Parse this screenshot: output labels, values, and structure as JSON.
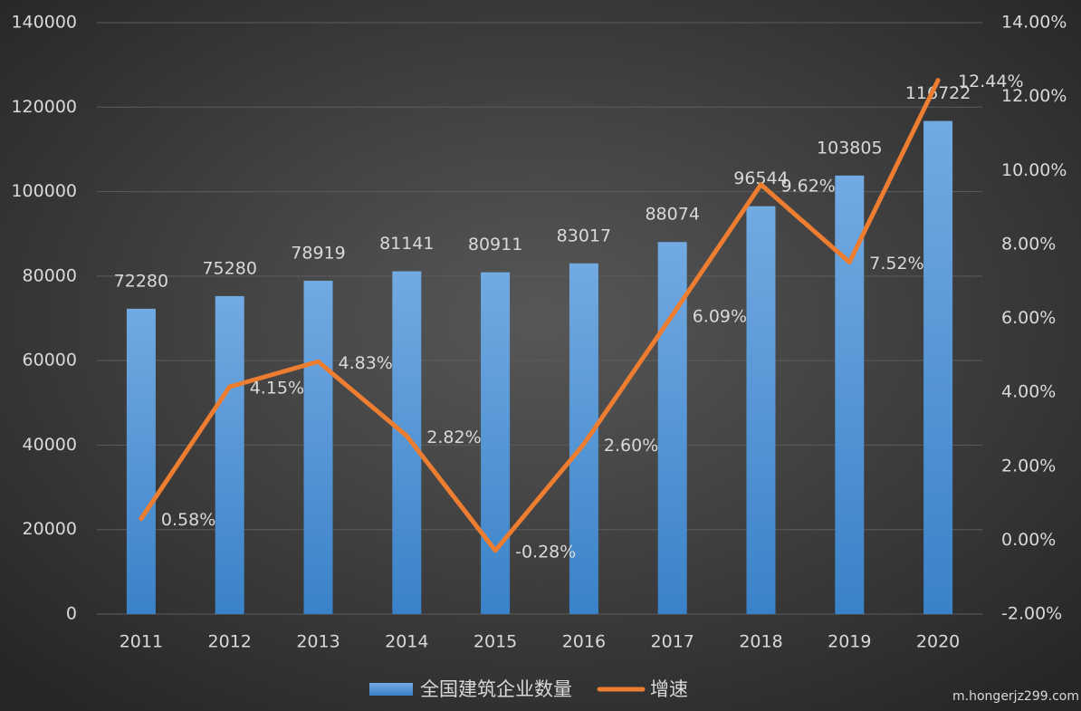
{
  "chart_data": {
    "type": "combo",
    "categories": [
      "2011",
      "2012",
      "2013",
      "2014",
      "2015",
      "2016",
      "2017",
      "2018",
      "2019",
      "2020"
    ],
    "series": [
      {
        "name": "全国建筑企业数量",
        "type": "bar",
        "color": "#4a90d4",
        "axis": "y",
        "values": [
          72280,
          75280,
          78919,
          81141,
          80911,
          83017,
          88074,
          96544,
          103805,
          116722
        ]
      },
      {
        "name": "增速",
        "type": "line",
        "color": "#ed7d31",
        "axis": "y2",
        "values": [
          0.58,
          4.15,
          4.83,
          2.82,
          -0.28,
          2.6,
          6.09,
          9.62,
          7.52,
          12.44
        ],
        "value_labels": [
          "0.58%",
          "4.15%",
          "4.83%",
          "2.82%",
          "-0.28%",
          "2.60%",
          "6.09%",
          "9.62%",
          "7.52%",
          "12.44%"
        ]
      }
    ],
    "ylim": [
      0,
      140000
    ],
    "yticks": [
      0,
      20000,
      40000,
      60000,
      80000,
      100000,
      120000,
      140000
    ],
    "y2lim": [
      -2,
      14
    ],
    "y2ticks": [
      {
        "value": -2,
        "label": "-2.00%"
      },
      {
        "value": 0,
        "label": "0.00%"
      },
      {
        "value": 2,
        "label": "2.00%"
      },
      {
        "value": 4,
        "label": "4.00%"
      },
      {
        "value": 6,
        "label": "6.00%"
      },
      {
        "value": 8,
        "label": "8.00%"
      },
      {
        "value": 10,
        "label": "10.00%"
      },
      {
        "value": 12,
        "label": "12.00%"
      },
      {
        "value": 14,
        "label": "14.00%"
      }
    ],
    "grid": true,
    "legend": "bottom",
    "watermark": "m.hongerjz299.com"
  }
}
